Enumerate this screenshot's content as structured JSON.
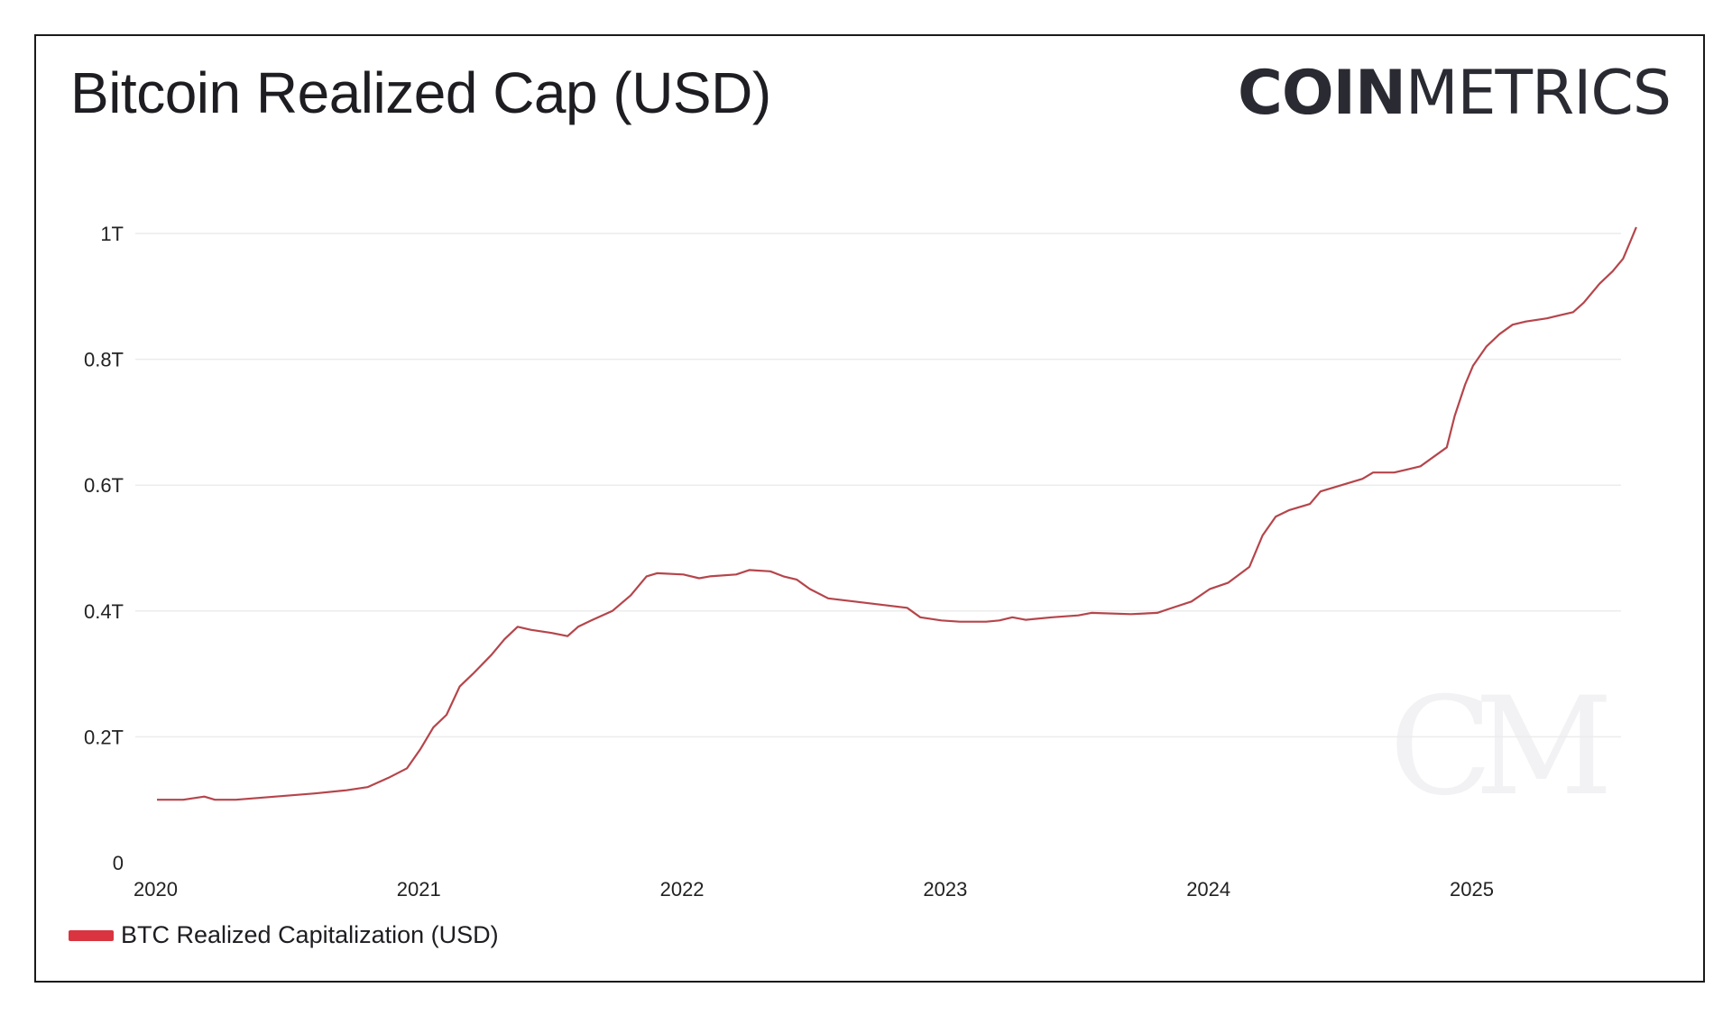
{
  "title": "Bitcoin Realized Cap (USD)",
  "logo": {
    "bold": "COIN",
    "light": "METRICS"
  },
  "legend": {
    "label": "BTC Realized Capitalization (USD)",
    "color": "#d9343f"
  },
  "colors": {
    "line": "#b5454b",
    "grid": "#ececec",
    "watermark": "#f2f2f4"
  },
  "chart_data": {
    "type": "line",
    "title": "Bitcoin Realized Cap (USD)",
    "xlabel": "",
    "ylabel": "",
    "ylim": [
      0,
      1.0
    ],
    "xlim": [
      2020.0,
      2025.62
    ],
    "y_ticks": [
      {
        "value": 0,
        "label": "0"
      },
      {
        "value": 0.2,
        "label": "0.2T"
      },
      {
        "value": 0.4,
        "label": "0.4T"
      },
      {
        "value": 0.6,
        "label": "0.6T"
      },
      {
        "value": 0.8,
        "label": "0.8T"
      },
      {
        "value": 1.0,
        "label": "1T"
      }
    ],
    "x_ticks": [
      {
        "value": 2020,
        "label": "2020"
      },
      {
        "value": 2021,
        "label": "2021"
      },
      {
        "value": 2022,
        "label": "2022"
      },
      {
        "value": 2023,
        "label": "2023"
      },
      {
        "value": 2024,
        "label": "2024"
      },
      {
        "value": 2025,
        "label": "2025"
      }
    ],
    "grid": true,
    "legend_position": "bottom-left",
    "series": [
      {
        "name": "BTC Realized Capitalization (USD)",
        "points": [
          [
            2020.0,
            0.1
          ],
          [
            2020.1,
            0.1
          ],
          [
            2020.18,
            0.105
          ],
          [
            2020.22,
            0.1
          ],
          [
            2020.3,
            0.1
          ],
          [
            2020.45,
            0.105
          ],
          [
            2020.6,
            0.11
          ],
          [
            2020.72,
            0.115
          ],
          [
            2020.8,
            0.12
          ],
          [
            2020.88,
            0.135
          ],
          [
            2020.95,
            0.15
          ],
          [
            2021.0,
            0.18
          ],
          [
            2021.05,
            0.215
          ],
          [
            2021.1,
            0.235
          ],
          [
            2021.15,
            0.28
          ],
          [
            2021.2,
            0.3
          ],
          [
            2021.27,
            0.33
          ],
          [
            2021.32,
            0.355
          ],
          [
            2021.37,
            0.375
          ],
          [
            2021.42,
            0.37
          ],
          [
            2021.5,
            0.365
          ],
          [
            2021.56,
            0.36
          ],
          [
            2021.6,
            0.375
          ],
          [
            2021.65,
            0.385
          ],
          [
            2021.73,
            0.4
          ],
          [
            2021.8,
            0.425
          ],
          [
            2021.86,
            0.455
          ],
          [
            2021.9,
            0.46
          ],
          [
            2022.0,
            0.458
          ],
          [
            2022.06,
            0.452
          ],
          [
            2022.1,
            0.455
          ],
          [
            2022.2,
            0.458
          ],
          [
            2022.25,
            0.465
          ],
          [
            2022.33,
            0.463
          ],
          [
            2022.38,
            0.455
          ],
          [
            2022.43,
            0.45
          ],
          [
            2022.48,
            0.435
          ],
          [
            2022.55,
            0.42
          ],
          [
            2022.65,
            0.415
          ],
          [
            2022.75,
            0.41
          ],
          [
            2022.85,
            0.405
          ],
          [
            2022.9,
            0.39
          ],
          [
            2022.98,
            0.385
          ],
          [
            2023.05,
            0.383
          ],
          [
            2023.15,
            0.383
          ],
          [
            2023.2,
            0.385
          ],
          [
            2023.25,
            0.39
          ],
          [
            2023.3,
            0.386
          ],
          [
            2023.4,
            0.39
          ],
          [
            2023.5,
            0.393
          ],
          [
            2023.55,
            0.397
          ],
          [
            2023.7,
            0.395
          ],
          [
            2023.8,
            0.397
          ],
          [
            2023.85,
            0.404
          ],
          [
            2023.93,
            0.415
          ],
          [
            2024.0,
            0.435
          ],
          [
            2024.07,
            0.445
          ],
          [
            2024.15,
            0.47
          ],
          [
            2024.2,
            0.52
          ],
          [
            2024.25,
            0.55
          ],
          [
            2024.3,
            0.56
          ],
          [
            2024.38,
            0.57
          ],
          [
            2024.42,
            0.59
          ],
          [
            2024.5,
            0.6
          ],
          [
            2024.58,
            0.61
          ],
          [
            2024.62,
            0.62
          ],
          [
            2024.7,
            0.62
          ],
          [
            2024.75,
            0.625
          ],
          [
            2024.8,
            0.63
          ],
          [
            2024.85,
            0.645
          ],
          [
            2024.9,
            0.66
          ],
          [
            2024.93,
            0.71
          ],
          [
            2024.97,
            0.76
          ],
          [
            2025.0,
            0.79
          ],
          [
            2025.05,
            0.82
          ],
          [
            2025.1,
            0.84
          ],
          [
            2025.15,
            0.855
          ],
          [
            2025.2,
            0.86
          ],
          [
            2025.28,
            0.865
          ],
          [
            2025.33,
            0.87
          ],
          [
            2025.38,
            0.875
          ],
          [
            2025.42,
            0.89
          ],
          [
            2025.48,
            0.92
          ],
          [
            2025.53,
            0.94
          ],
          [
            2025.57,
            0.96
          ],
          [
            2025.6,
            0.99
          ],
          [
            2025.62,
            1.01
          ]
        ]
      }
    ]
  }
}
